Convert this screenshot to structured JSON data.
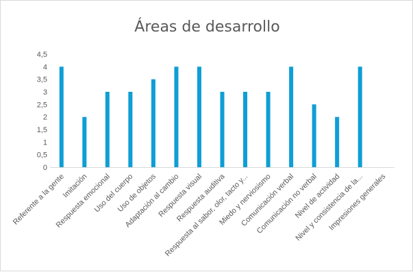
{
  "chart_data": {
    "type": "bar",
    "title": "Áreas de desarrollo",
    "categories": [
      "Referente a la gente",
      "Imitación",
      "Respuesta emocional",
      "Uso del cuerpo",
      "Uso de objetos",
      "Adaptación al cambio",
      "Respuesta visual",
      "Respuesta auditiva",
      "Respuesta al sabor, olor, tacto y...",
      "Miedo y nerviosismo",
      "Comunicación verbal",
      "Comunicación no verbal",
      "Nivel de actividad",
      "Nivel y consistencia de la...",
      "Impresiones generales"
    ],
    "values": [
      4,
      2,
      3,
      3,
      3.5,
      4,
      4,
      3,
      3,
      3,
      4,
      2.5,
      2,
      4,
      0
    ],
    "ylim": [
      0,
      4.5
    ],
    "yticks": [
      "0",
      "0,5",
      "1",
      "1,5",
      "2",
      "2,5",
      "3",
      "3,5",
      "4",
      "4,5"
    ],
    "grid": false,
    "bar_color": "#0f9ed5",
    "axis_color": "#d9d9d9"
  }
}
